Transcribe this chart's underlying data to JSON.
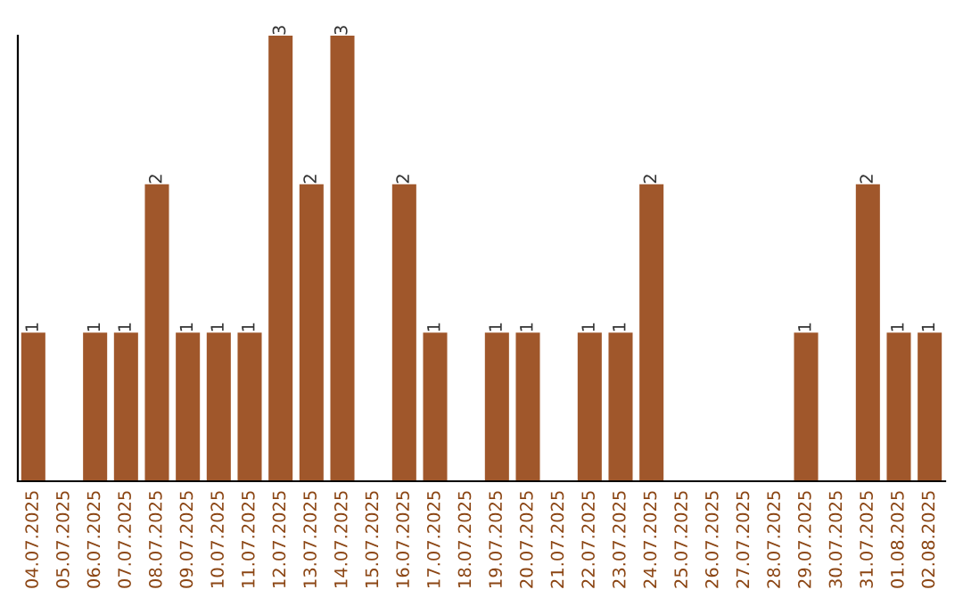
{
  "chart_data": {
    "type": "bar",
    "categories": [
      "04.07.2025",
      "05.07.2025",
      "06.07.2025",
      "07.07.2025",
      "08.07.2025",
      "09.07.2025",
      "10.07.2025",
      "11.07.2025",
      "12.07.2025",
      "13.07.2025",
      "14.07.2025",
      "15.07.2025",
      "16.07.2025",
      "17.07.2025",
      "18.07.2025",
      "19.07.2025",
      "20.07.2025",
      "21.07.2025",
      "22.07.2025",
      "23.07.2025",
      "24.07.2025",
      "25.07.2025",
      "26.07.2025",
      "27.07.2025",
      "28.07.2025",
      "29.07.2025",
      "30.07.2025",
      "31.07.2025",
      "01.08.2025",
      "02.08.2025"
    ],
    "values": [
      1,
      0,
      1,
      1,
      2,
      1,
      1,
      1,
      3,
      2,
      3,
      0,
      2,
      1,
      0,
      1,
      1,
      0,
      1,
      1,
      2,
      0,
      0,
      0,
      0,
      1,
      0,
      2,
      1,
      1
    ],
    "value_labels": [
      "1",
      null,
      "1",
      "1",
      "2",
      "1",
      "1",
      "1",
      "3",
      "2",
      "3",
      null,
      "2",
      "1",
      null,
      "1",
      "1",
      null,
      "1",
      "1",
      "2",
      null,
      null,
      null,
      null,
      "1",
      null,
      "2",
      "1",
      "1"
    ],
    "color": "#a0572b",
    "ylim": [
      0,
      3
    ],
    "tick_labels": "x",
    "grid": false
  }
}
